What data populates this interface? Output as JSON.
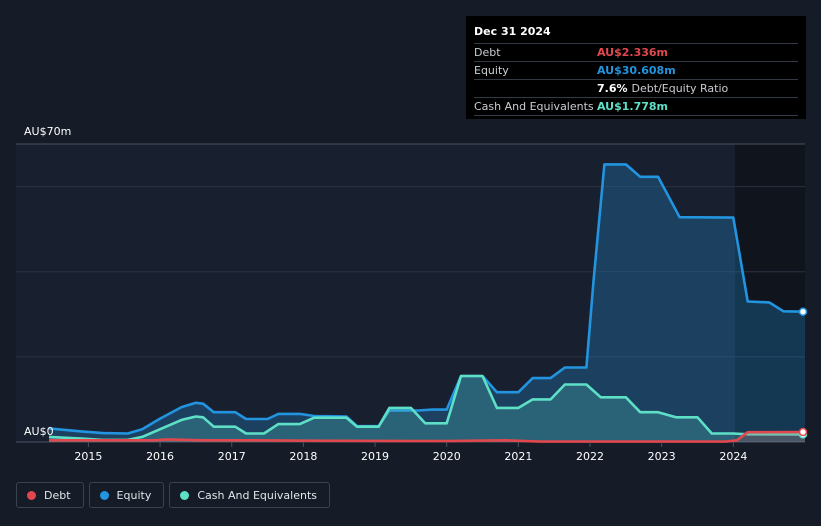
{
  "tooltip": {
    "date": "Dec 31 2024",
    "rows": [
      {
        "label": "Debt",
        "value": "AU$2.336m",
        "color": "#e0484e"
      },
      {
        "label": "Equity",
        "value": "AU$30.608m",
        "color": "#2394df"
      },
      {
        "label": "",
        "value": "7.6%",
        "sub": "Debt/Equity Ratio",
        "color": "#ffffff"
      },
      {
        "label": "Cash And Equivalents",
        "value": "AU$1.778m",
        "color": "#5ee0c7"
      }
    ]
  },
  "legend": [
    {
      "label": "Debt",
      "color": "#e0484e"
    },
    {
      "label": "Equity",
      "color": "#2394df"
    },
    {
      "label": "Cash And Equivalents",
      "color": "#5ee0c7"
    }
  ],
  "chart_data": {
    "type": "area",
    "y_top_label": "AU$70m",
    "y_bottom_label": "AU$0",
    "ylim": [
      0,
      70
    ],
    "xlim": [
      2014.45,
      2025.0
    ],
    "x_ticks": [
      "2015",
      "2016",
      "2017",
      "2018",
      "2019",
      "2020",
      "2021",
      "2022",
      "2023",
      "2024"
    ],
    "grid": true,
    "series": [
      {
        "name": "Equity",
        "color": "#2394df",
        "points": [
          [
            2014.45,
            3.2
          ],
          [
            2014.9,
            2.5
          ],
          [
            2015.2,
            2.1
          ],
          [
            2015.55,
            2.0
          ],
          [
            2015.75,
            3.0
          ],
          [
            2016.0,
            5.5
          ],
          [
            2016.3,
            8.2
          ],
          [
            2016.5,
            9.2
          ],
          [
            2016.6,
            9.0
          ],
          [
            2016.75,
            7.0
          ],
          [
            2017.05,
            7.0
          ],
          [
            2017.2,
            5.4
          ],
          [
            2017.5,
            5.4
          ],
          [
            2017.65,
            6.6
          ],
          [
            2017.95,
            6.6
          ],
          [
            2018.15,
            6.1
          ],
          [
            2018.6,
            6.0
          ],
          [
            2018.75,
            3.7
          ],
          [
            2019.05,
            3.7
          ],
          [
            2019.2,
            7.4
          ],
          [
            2019.6,
            7.4
          ],
          [
            2019.8,
            7.6
          ],
          [
            2020.0,
            7.6
          ],
          [
            2020.2,
            15.5
          ],
          [
            2020.5,
            15.5
          ],
          [
            2020.7,
            11.7
          ],
          [
            2021.0,
            11.7
          ],
          [
            2021.2,
            15.0
          ],
          [
            2021.45,
            15.0
          ],
          [
            2021.65,
            17.5
          ],
          [
            2021.95,
            17.5
          ],
          [
            2022.05,
            38.0
          ],
          [
            2022.2,
            65.2
          ],
          [
            2022.5,
            65.2
          ],
          [
            2022.7,
            62.3
          ],
          [
            2022.95,
            62.3
          ],
          [
            2023.25,
            52.8
          ],
          [
            2024.0,
            52.7
          ],
          [
            2024.2,
            33.0
          ],
          [
            2024.5,
            32.8
          ],
          [
            2024.7,
            30.7
          ],
          [
            2025.0,
            30.6
          ]
        ]
      },
      {
        "name": "Cash And Equivalents",
        "color": "#5ee0c7",
        "points": [
          [
            2014.45,
            1.2
          ],
          [
            2014.9,
            0.8
          ],
          [
            2015.2,
            0.5
          ],
          [
            2015.55,
            0.5
          ],
          [
            2015.75,
            1.2
          ],
          [
            2016.0,
            3.0
          ],
          [
            2016.3,
            5.2
          ],
          [
            2016.5,
            6.0
          ],
          [
            2016.6,
            5.8
          ],
          [
            2016.75,
            3.6
          ],
          [
            2017.05,
            3.6
          ],
          [
            2017.2,
            2.0
          ],
          [
            2017.45,
            2.0
          ],
          [
            2017.65,
            4.2
          ],
          [
            2017.95,
            4.2
          ],
          [
            2018.15,
            5.7
          ],
          [
            2018.6,
            5.7
          ],
          [
            2018.75,
            3.6
          ],
          [
            2019.05,
            3.6
          ],
          [
            2019.2,
            8.0
          ],
          [
            2019.5,
            8.0
          ],
          [
            2019.7,
            4.4
          ],
          [
            2020.0,
            4.4
          ],
          [
            2020.2,
            15.5
          ],
          [
            2020.5,
            15.5
          ],
          [
            2020.7,
            8.0
          ],
          [
            2021.0,
            8.0
          ],
          [
            2021.2,
            10.0
          ],
          [
            2021.45,
            10.0
          ],
          [
            2021.65,
            13.5
          ],
          [
            2021.95,
            13.5
          ],
          [
            2022.15,
            10.5
          ],
          [
            2022.5,
            10.5
          ],
          [
            2022.7,
            7.0
          ],
          [
            2022.95,
            7.0
          ],
          [
            2023.2,
            5.8
          ],
          [
            2023.5,
            5.8
          ],
          [
            2023.7,
            2.0
          ],
          [
            2024.0,
            2.0
          ],
          [
            2024.2,
            1.8
          ],
          [
            2025.0,
            1.78
          ]
        ]
      },
      {
        "name": "Debt",
        "color": "#e0484e",
        "points": [
          [
            2014.45,
            0.4
          ],
          [
            2015.9,
            0.4
          ],
          [
            2016.1,
            0.6
          ],
          [
            2016.6,
            0.4
          ],
          [
            2017.3,
            0.4
          ],
          [
            2018.0,
            0.3
          ],
          [
            2020.0,
            0.2
          ],
          [
            2020.8,
            0.4
          ],
          [
            2021.3,
            0.1
          ],
          [
            2023.9,
            0.1
          ],
          [
            2024.05,
            0.4
          ],
          [
            2024.2,
            2.3
          ],
          [
            2025.0,
            2.34
          ]
        ]
      }
    ]
  }
}
